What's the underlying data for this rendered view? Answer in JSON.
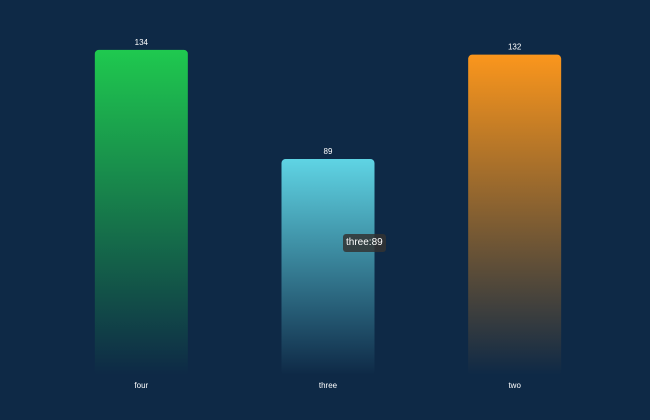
{
  "chart_data": {
    "type": "bar",
    "categories": [
      "four",
      "three",
      "two"
    ],
    "values": [
      134,
      89,
      132
    ],
    "ylim": [
      0,
      150
    ],
    "grid": false,
    "bar_gradients": [
      {
        "top": "#1fc94f",
        "bottom": "#0e2946"
      },
      {
        "top": "#5fd4e4",
        "bottom": "#0e2946"
      },
      {
        "top": "#fb961c",
        "bottom": "#0e2946"
      }
    ]
  },
  "tooltip": {
    "text": "three:89"
  },
  "colors": {
    "background": "#0e2946",
    "label_text": "#ffffff"
  }
}
